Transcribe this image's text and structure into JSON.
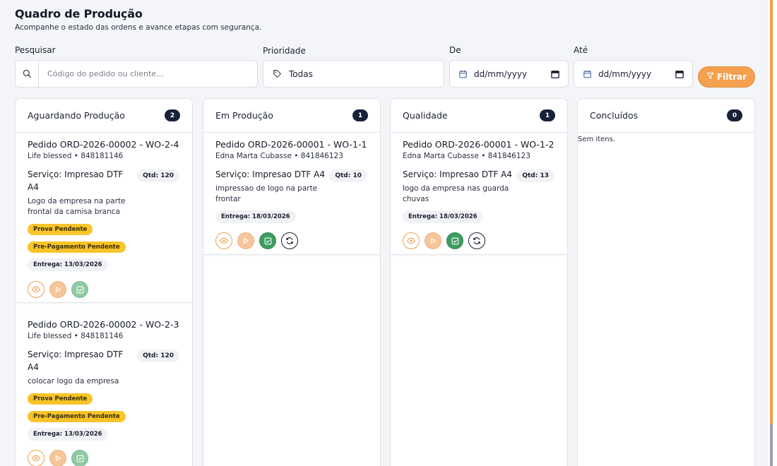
{
  "header": {
    "title": "Quadro de Produção",
    "subtitle": "Acompanhe o estado das ordens e avance etapas com segurança."
  },
  "filters": {
    "search": {
      "label": "Pesquisar",
      "placeholder": "Código do pedido ou cliente...",
      "value": ""
    },
    "priority": {
      "label": "Prioridade",
      "value": "Todas"
    },
    "from": {
      "label": "De",
      "value": "dd/mm/yyyy"
    },
    "to": {
      "label": "Até",
      "value": "dd/mm/yyyy"
    },
    "filter_button": "Filtrar"
  },
  "columns": [
    {
      "title": "Aguardando Produção",
      "count": "2",
      "cards": [
        {
          "title": "Pedido ORD-2026-00002 - WO-2-4",
          "client": "Life blessed • 848181146",
          "service": "Serviço: Impresao DTF A4",
          "qty": "Qtd: 120",
          "description": "Logo da empresa na parte frontal da camisa branca",
          "tags": [
            "Prova Pendente",
            "Pre-Pagamento Pendente"
          ],
          "delivery": "Entrega: 13/03/2026"
        },
        {
          "title": "Pedido ORD-2026-00002 - WO-2-3",
          "client": "Life blessed • 848181146",
          "service": "Serviço: Impresao DTF A4",
          "qty": "Qtd: 120",
          "description": "colocar logo da empresa",
          "tags": [
            "Prova Pendente",
            "Pre-Pagamento Pendente"
          ],
          "delivery": "Entrega: 13/03/2026"
        }
      ]
    },
    {
      "title": "Em Produção",
      "count": "1",
      "cards": [
        {
          "title": "Pedido ORD-2026-00001 - WO-1-1",
          "client": "Edna Marta Cubasse • 841846123",
          "service": "Serviço: Impresao DTF A4",
          "qty": "Qtd: 10",
          "description": "impressao de logo na parte frontar",
          "delivery": "Entrega: 18/03/2026"
        }
      ]
    },
    {
      "title": "Qualidade",
      "count": "1",
      "cards": [
        {
          "title": "Pedido ORD-2026-00001 - WO-1-2",
          "client": "Edna Marta Cubasse • 841846123",
          "service": "Serviço: Impresao DTF A4",
          "qty": "Qtd: 13",
          "description": "logo da empresa nas guarda chuvas",
          "delivery": "Entrega: 18/03/2026"
        }
      ]
    },
    {
      "title": "Concluídos",
      "count": "0",
      "empty_text": "Sem itens."
    }
  ],
  "icons": {
    "search": "search-icon",
    "priority": "tag-icon",
    "date": "calendar-icon",
    "filter": "filter-icon",
    "view": "eye-icon",
    "start": "play-icon",
    "approve": "check-square-icon",
    "reset": "refresh-icon"
  },
  "colors": {
    "accent": "#f3a04f",
    "count_badge": "#17223a",
    "tag_yellow": "#f8c42a",
    "approve_green": "#3e9c62"
  }
}
